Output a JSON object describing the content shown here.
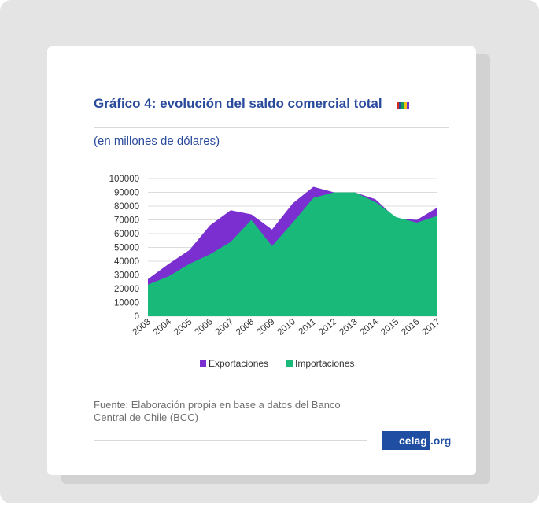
{
  "header": {
    "title": "Gráfico 4: evolución del saldo comercial total",
    "flag_colors": [
      "#d52b1e",
      "#2a4a9c",
      "#1a9b5a",
      "#f4c20d",
      "#7b2fd0"
    ],
    "subtitle": "(en millones de dólares)"
  },
  "footer": {
    "source": "Fuente: Elaboración propia en base a datos del Banco Central de Chile (BCC)",
    "logo_main": "celag",
    "logo_tld": ".org"
  },
  "colors": {
    "exportaciones": "#7b2fd0",
    "importaciones": "#19b97a",
    "grid": "#dcdcdc",
    "text": "#333333"
  },
  "chart_data": {
    "type": "area",
    "title": "",
    "xlabel": "",
    "ylabel": "",
    "x": [
      "2003",
      "2004",
      "2005",
      "2006",
      "2007",
      "2008",
      "2009",
      "2010",
      "2011",
      "2012",
      "2013",
      "2014",
      "2015",
      "2016",
      "2017"
    ],
    "series": [
      {
        "name": "Exportaciones",
        "values": [
          27000,
          38000,
          48000,
          66000,
          77000,
          74000,
          63000,
          82000,
          94000,
          90000,
          90000,
          85000,
          71000,
          70000,
          79000
        ]
      },
      {
        "name": "Importaciones",
        "values": [
          23000,
          29000,
          38000,
          45000,
          54000,
          70000,
          51000,
          68000,
          86000,
          90000,
          90000,
          83000,
          72000,
          68000,
          73000
        ]
      }
    ],
    "ylim": [
      0,
      100000
    ],
    "yticks": [
      0,
      10000,
      20000,
      30000,
      40000,
      50000,
      60000,
      70000,
      80000,
      90000,
      100000
    ],
    "grid": true,
    "legend": "bottom"
  }
}
